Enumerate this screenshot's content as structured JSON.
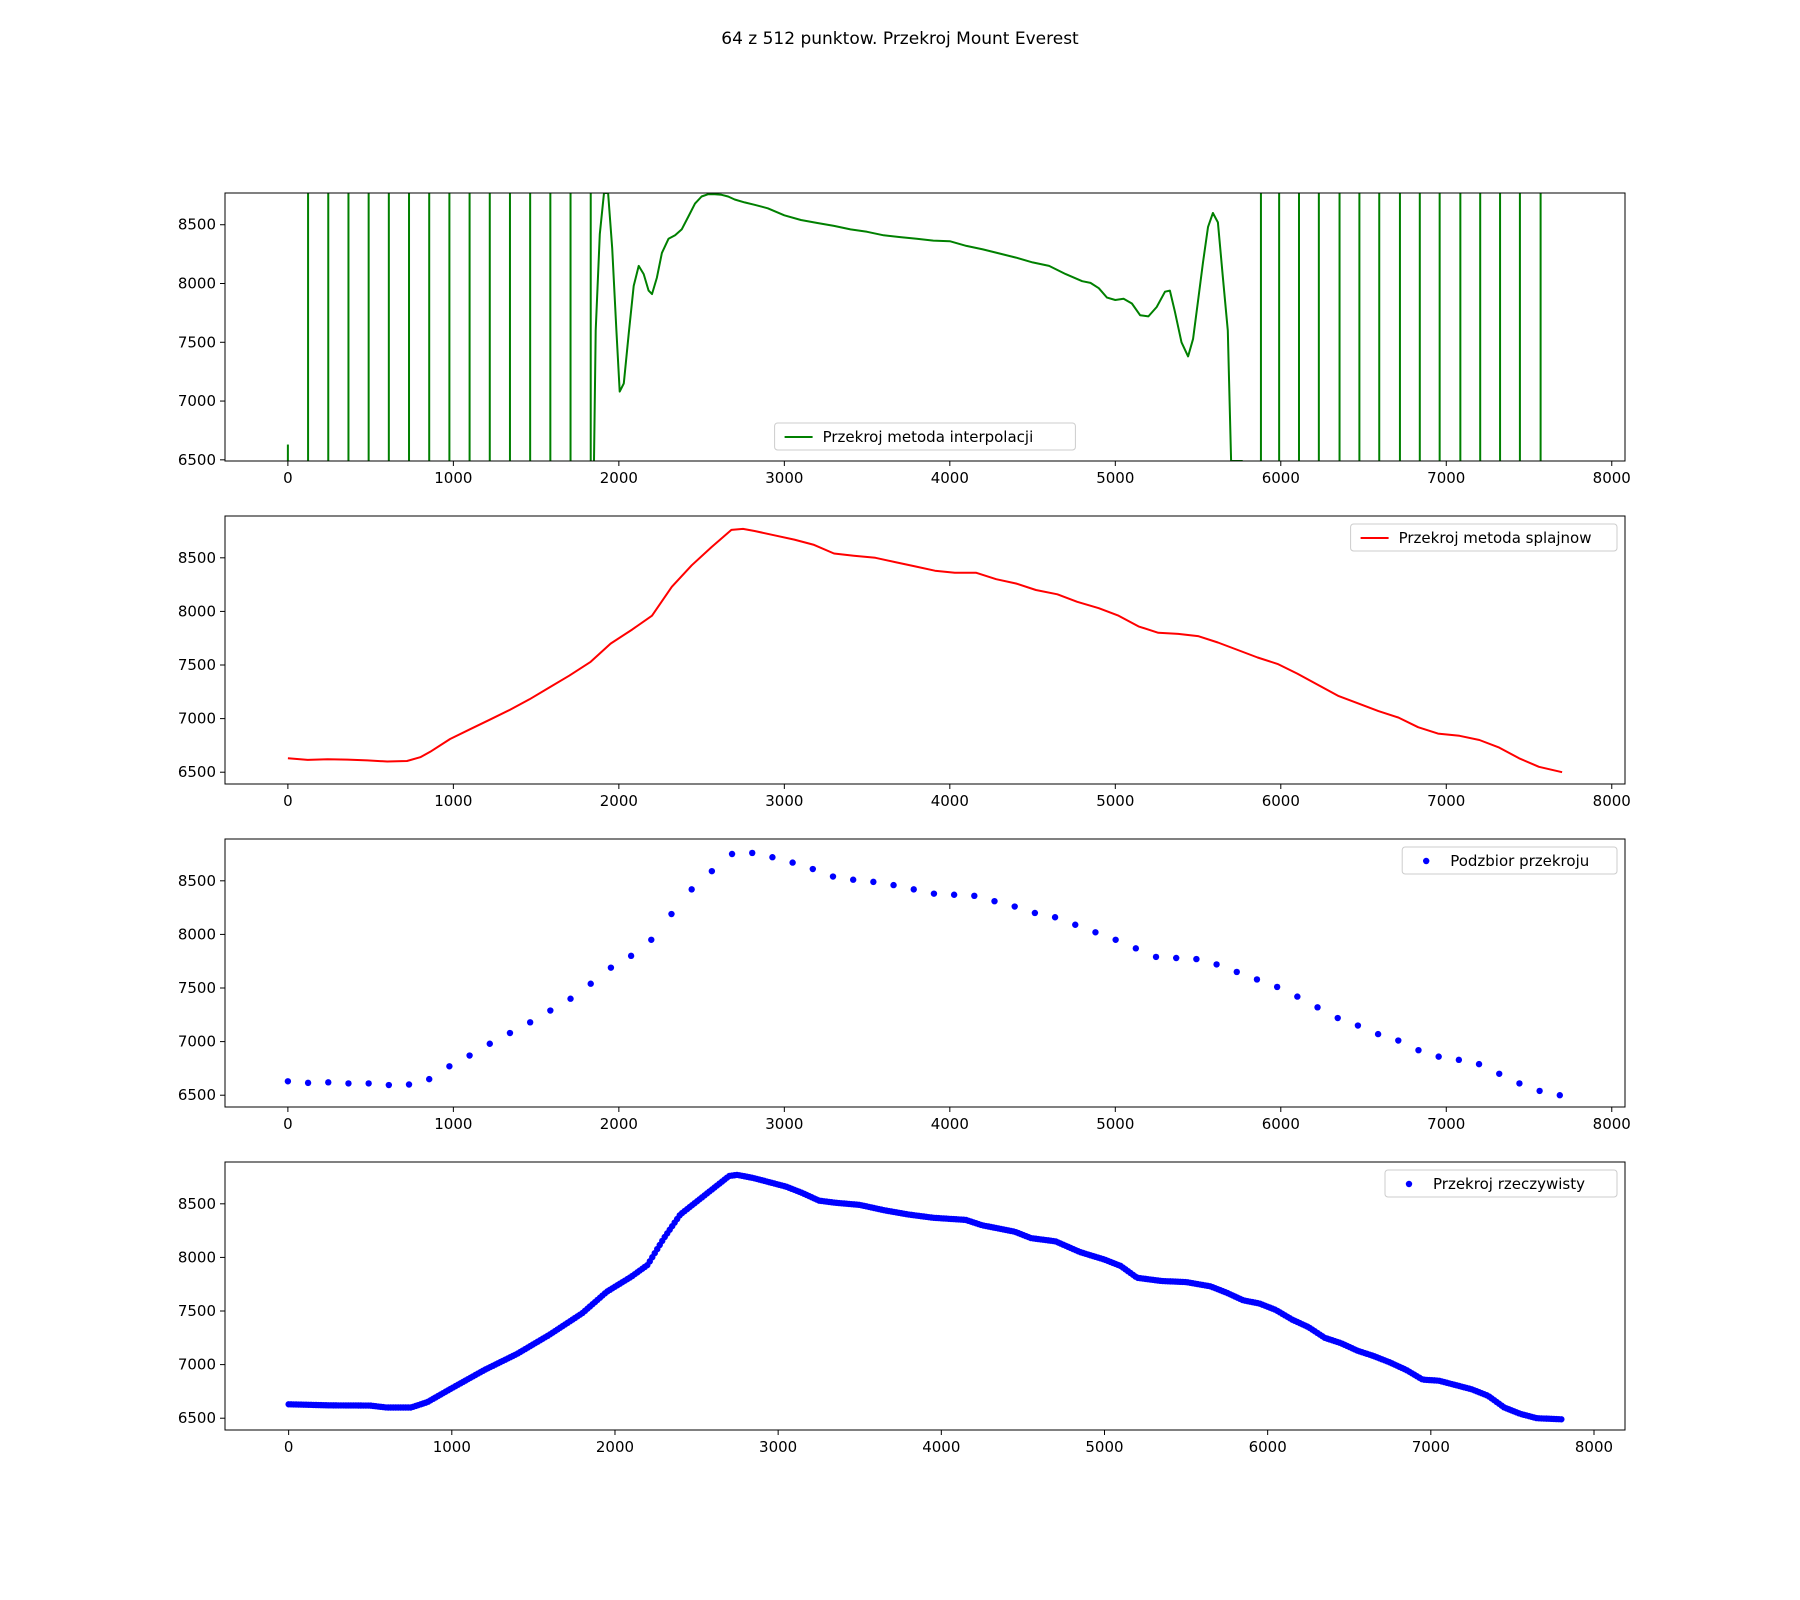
{
  "figure": {
    "title": "64 z 512 punktow. Przekroj Mount Everest"
  },
  "chart_data": [
    {
      "type": "line",
      "title": "",
      "legend": "Przekroj metoda interpolacji",
      "legend_position": "lower-center",
      "color": "#008000",
      "xlim": [
        -380,
        8080
      ],
      "ylim": [
        6490,
        8770
      ],
      "xticks": [
        0,
        1000,
        2000,
        3000,
        4000,
        5000,
        6000,
        7000,
        8000
      ],
      "yticks": [
        6500,
        7000,
        7500,
        8000,
        8500
      ],
      "x": [
        1850,
        1860,
        1885,
        1910,
        1935,
        1960,
        1985,
        2005,
        2030,
        2060,
        2090,
        2120,
        2150,
        2180,
        2200,
        2230,
        2260,
        2300,
        2340,
        2380,
        2420,
        2460,
        2500,
        2540,
        2580,
        2620,
        2660,
        2700,
        2760,
        2820,
        2900,
        3000,
        3100,
        3200,
        3300,
        3400,
        3500,
        3600,
        3700,
        3800,
        3900,
        4000,
        4100,
        4200,
        4300,
        4400,
        4500,
        4600,
        4700,
        4800,
        4850,
        4900,
        4950,
        5000,
        5050,
        5100,
        5150,
        5200,
        5250,
        5300,
        5330,
        5360,
        5400,
        5440,
        5470,
        5500,
        5530,
        5560,
        5590,
        5620,
        5650,
        5680,
        5700,
        5720,
        5740,
        5760,
        5770
      ],
      "y": [
        6490,
        7600,
        8420,
        8770,
        8770,
        8300,
        7600,
        7080,
        7150,
        7580,
        7980,
        8150,
        8080,
        7940,
        7910,
        8050,
        8260,
        8380,
        8410,
        8460,
        8570,
        8680,
        8740,
        8760,
        8760,
        8755,
        8740,
        8715,
        8690,
        8670,
        8640,
        8580,
        8540,
        8515,
        8490,
        8460,
        8440,
        8410,
        8395,
        8380,
        8365,
        8360,
        8320,
        8290,
        8255,
        8220,
        8180,
        8150,
        8080,
        8020,
        8005,
        7960,
        7880,
        7860,
        7870,
        7830,
        7730,
        7720,
        7800,
        7930,
        7940,
        7760,
        7500,
        7380,
        7530,
        7850,
        8180,
        8480,
        8600,
        8520,
        8050,
        7600,
        6490,
        6490,
        6490,
        6490,
        6490
      ],
      "spikes": [
        0,
        122,
        244,
        366,
        488,
        610,
        732,
        854,
        976,
        1098,
        1220,
        1342,
        1464,
        1586,
        1708,
        1830,
        5880,
        5990,
        6110,
        6230,
        6355,
        6475,
        6595,
        6720,
        6840,
        6960,
        7085,
        7205,
        7325,
        7445,
        7570
      ],
      "spike_bottom": 6490,
      "spike_top": 8770,
      "first_spike_top": 6630
    },
    {
      "type": "line",
      "title": "",
      "legend": "Przekroj metoda splajnow",
      "legend_position": "upper-right",
      "color": "#ff0000",
      "xlim": [
        -380,
        8080
      ],
      "ylim": [
        6390,
        8890
      ],
      "xticks": [
        0,
        1000,
        2000,
        3000,
        4000,
        5000,
        6000,
        7000,
        8000
      ],
      "yticks": [
        6500,
        7000,
        7500,
        8000,
        8500
      ],
      "x": [
        0,
        120,
        240,
        360,
        480,
        600,
        720,
        800,
        860,
        980,
        1100,
        1220,
        1340,
        1460,
        1580,
        1700,
        1830,
        1950,
        2080,
        2200,
        2320,
        2440,
        2560,
        2680,
        2750,
        2820,
        2940,
        3060,
        3180,
        3300,
        3420,
        3550,
        3670,
        3790,
        3910,
        4030,
        4160,
        4280,
        4400,
        4520,
        4650,
        4770,
        4900,
        5020,
        5140,
        5260,
        5380,
        5500,
        5620,
        5740,
        5860,
        5980,
        6100,
        6230,
        6350,
        6470,
        6590,
        6710,
        6830,
        6950,
        7080,
        7200,
        7320,
        7440,
        7560,
        7700
      ],
      "y": [
        6630,
        6615,
        6620,
        6618,
        6610,
        6600,
        6605,
        6640,
        6690,
        6810,
        6900,
        6990,
        7080,
        7180,
        7290,
        7400,
        7530,
        7700,
        7830,
        7960,
        8230,
        8430,
        8600,
        8760,
        8770,
        8750,
        8710,
        8670,
        8620,
        8540,
        8520,
        8500,
        8460,
        8420,
        8380,
        8360,
        8360,
        8300,
        8260,
        8200,
        8160,
        8090,
        8030,
        7960,
        7860,
        7800,
        7790,
        7770,
        7710,
        7640,
        7570,
        7510,
        7420,
        7310,
        7210,
        7140,
        7070,
        7010,
        6920,
        6860,
        6840,
        6800,
        6730,
        6630,
        6550,
        6500
      ]
    },
    {
      "type": "scatter",
      "title": "",
      "legend": "Podzbior przekroju",
      "legend_position": "upper-right",
      "color": "#0000ff",
      "xlim": [
        -380,
        8080
      ],
      "ylim": [
        6390,
        8890
      ],
      "xticks": [
        0,
        1000,
        2000,
        3000,
        4000,
        5000,
        6000,
        7000,
        8000
      ],
      "yticks": [
        6500,
        7000,
        7500,
        8000,
        8500
      ],
      "x": [
        0,
        122,
        244,
        366,
        488,
        610,
        732,
        854,
        976,
        1098,
        1220,
        1342,
        1464,
        1586,
        1708,
        1830,
        1952,
        2074,
        2196,
        2318,
        2440,
        2562,
        2684,
        2806,
        2928,
        3050,
        3172,
        3294,
        3416,
        3538,
        3660,
        3782,
        3904,
        4026,
        4148,
        4270,
        4392,
        4514,
        4636,
        4758,
        4880,
        5002,
        5124,
        5246,
        5368,
        5490,
        5612,
        5734,
        5856,
        5978,
        6100,
        6222,
        6344,
        6466,
        6588,
        6710,
        6832,
        6954,
        7076,
        7198,
        7320,
        7442,
        7564,
        7686
      ],
      "y": [
        6630,
        6615,
        6620,
        6610,
        6610,
        6595,
        6600,
        6650,
        6770,
        6870,
        6980,
        7080,
        7180,
        7290,
        7400,
        7540,
        7690,
        7800,
        7950,
        8190,
        8420,
        8590,
        8750,
        8760,
        8720,
        8670,
        8610,
        8540,
        8510,
        8490,
        8460,
        8420,
        8380,
        8370,
        8360,
        8310,
        8260,
        8200,
        8160,
        8090,
        8020,
        7950,
        7870,
        7790,
        7780,
        7770,
        7720,
        7650,
        7580,
        7510,
        7420,
        7320,
        7220,
        7150,
        7070,
        7010,
        6920,
        6860,
        6830,
        6790,
        6700,
        6610,
        6540,
        6500
      ]
    },
    {
      "type": "scatter",
      "title": "",
      "legend": "Przekroj rzeczywisty",
      "legend_position": "upper-right",
      "color": "#0000ff",
      "points": 512,
      "xlim": [
        -390,
        8190
      ],
      "ylim": [
        6390,
        8890
      ],
      "xticks": [
        0,
        1000,
        2000,
        3000,
        4000,
        5000,
        6000,
        7000,
        8000
      ],
      "yticks": [
        6500,
        7000,
        7500,
        8000,
        8500
      ],
      "x": [
        0,
        250,
        500,
        600,
        750,
        850,
        1000,
        1200,
        1400,
        1600,
        1800,
        1950,
        2100,
        2200,
        2300,
        2400,
        2550,
        2700,
        2750,
        2850,
        2950,
        3050,
        3150,
        3250,
        3350,
        3500,
        3650,
        3800,
        3950,
        4050,
        4150,
        4250,
        4350,
        4450,
        4550,
        4700,
        4850,
        5000,
        5100,
        5200,
        5350,
        5500,
        5650,
        5750,
        5850,
        5950,
        6050,
        6150,
        6250,
        6350,
        6450,
        6550,
        6650,
        6750,
        6850,
        6950,
        7050,
        7150,
        7250,
        7350,
        7450,
        7550,
        7650,
        7800
      ],
      "y": [
        6630,
        6620,
        6618,
        6600,
        6600,
        6650,
        6780,
        6950,
        7100,
        7280,
        7480,
        7680,
        7820,
        7930,
        8180,
        8400,
        8580,
        8760,
        8770,
        8740,
        8700,
        8660,
        8600,
        8530,
        8510,
        8490,
        8440,
        8400,
        8370,
        8360,
        8350,
        8300,
        8270,
        8240,
        8180,
        8150,
        8050,
        7980,
        7920,
        7810,
        7780,
        7770,
        7730,
        7670,
        7600,
        7570,
        7510,
        7420,
        7350,
        7250,
        7200,
        7130,
        7080,
        7020,
        6950,
        6860,
        6850,
        6810,
        6770,
        6710,
        6600,
        6540,
        6500,
        6490
      ]
    }
  ]
}
